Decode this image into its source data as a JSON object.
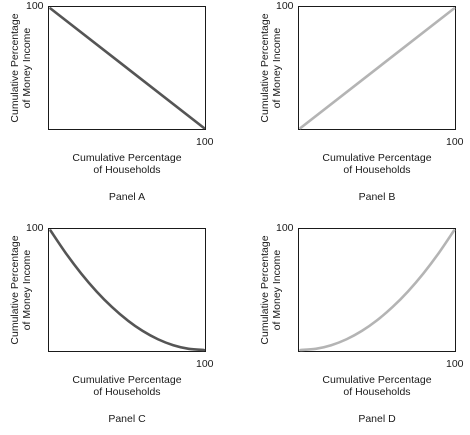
{
  "chart_data": [
    {
      "type": "line",
      "title": "Panel A",
      "xlabel": [
        "Cumulative Percentage",
        "of Households"
      ],
      "ylabel": [
        "Cumulative Percentage",
        "of Money Income"
      ],
      "xlim": [
        0,
        100
      ],
      "ylim": [
        0,
        100
      ],
      "x_tick_labels": [
        "100"
      ],
      "y_tick_labels": [
        "100"
      ],
      "series": [
        {
          "x": [
            0,
            100
          ],
          "y": [
            100,
            0
          ],
          "color": "#555555"
        }
      ],
      "grid": false
    },
    {
      "type": "line",
      "title": "Panel B",
      "xlabel": [
        "Cumulative Percentage",
        "of Households"
      ],
      "ylabel": [
        "Cumulative Percentage",
        "of Money Income"
      ],
      "xlim": [
        0,
        100
      ],
      "ylim": [
        0,
        100
      ],
      "x_tick_labels": [
        "100"
      ],
      "y_tick_labels": [
        "100"
      ],
      "series": [
        {
          "x": [
            0,
            100
          ],
          "y": [
            0,
            100
          ],
          "color": "#b4b4b4"
        }
      ],
      "grid": false
    },
    {
      "type": "line",
      "title": "Panel C",
      "xlabel": [
        "Cumulative Percentage",
        "of Households"
      ],
      "ylabel": [
        "Cumulative Percentage",
        "of Money Income"
      ],
      "xlim": [
        0,
        100
      ],
      "ylim": [
        0,
        100
      ],
      "x_tick_labels": [
        "100"
      ],
      "y_tick_labels": [
        "100"
      ],
      "series": [
        {
          "x": [
            0,
            10,
            20,
            30,
            40,
            50,
            60,
            70,
            80,
            90,
            100
          ],
          "y": [
            100,
            81,
            64,
            49,
            36,
            25,
            16,
            9,
            4,
            1,
            0
          ],
          "color": "#555555"
        }
      ],
      "grid": false
    },
    {
      "type": "line",
      "title": "Panel D",
      "xlabel": [
        "Cumulative Percentage",
        "of Households"
      ],
      "ylabel": [
        "Cumulative Percentage",
        "of Money Income"
      ],
      "xlim": [
        0,
        100
      ],
      "ylim": [
        0,
        100
      ],
      "x_tick_labels": [
        "100"
      ],
      "y_tick_labels": [
        "100"
      ],
      "series": [
        {
          "x": [
            0,
            10,
            20,
            30,
            40,
            50,
            60,
            70,
            80,
            90,
            100
          ],
          "y": [
            0,
            1,
            4,
            9,
            16,
            25,
            36,
            49,
            64,
            81,
            100
          ],
          "color": "#b4b4b4"
        }
      ],
      "grid": false
    }
  ]
}
